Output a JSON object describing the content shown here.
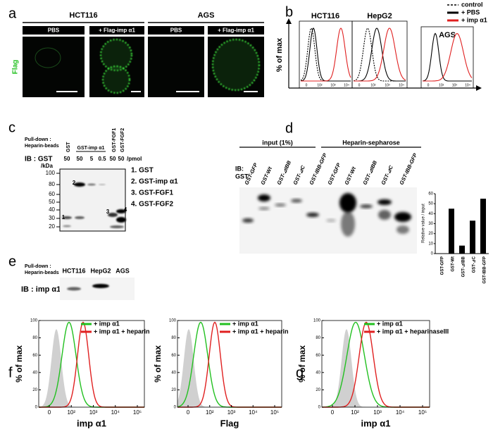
{
  "panels": {
    "a": {
      "label": "a",
      "channel": "Flag",
      "cell_lines": [
        {
          "name": "HCT116",
          "conditions": [
            "PBS",
            "+ Flag-imp α1"
          ]
        },
        {
          "name": "AGS",
          "conditions": [
            "PBS",
            "+ Flag-imp α1"
          ]
        }
      ]
    },
    "b": {
      "label": "b",
      "y_label": "% of max",
      "plots": [
        "HCT116",
        "HepG2",
        "AGS"
      ],
      "legend": [
        "control",
        "+ PBS",
        "+ imp α1"
      ],
      "legend_colors": [
        "#000000",
        "#000000",
        "#e02020"
      ],
      "x_tick_labels": [
        "0",
        "10²",
        "10³",
        "10⁴"
      ]
    },
    "c": {
      "label": "c",
      "pull_down": [
        "Pull-down :",
        "Heparin-beads"
      ],
      "ib": "IB : GST",
      "lanes": [
        "GST",
        "GST-imp α1",
        "GST-FGF1",
        "GST-FGF2"
      ],
      "amounts": [
        50,
        50,
        5,
        0.5,
        50,
        50
      ],
      "amount_unit": "/pmol",
      "kda_unit": "/kDa",
      "kda_markers": [
        100,
        80,
        60,
        50,
        40,
        30,
        20
      ],
      "band_labels": [
        "1",
        "2",
        "3",
        "4"
      ],
      "legend": [
        "1. GST",
        "2. GST-imp α1",
        "3. GST-FGF1",
        "4. GST-FGF2"
      ]
    },
    "d": {
      "label": "d",
      "groups": [
        "input (1%)",
        "Heparin-sepharose"
      ],
      "ib": [
        "IB:",
        "GST"
      ],
      "lanes": [
        "GST-GFP",
        "GST-Wt",
        "GST-⊿IBB",
        "GST-⊿C",
        "GST-IBB-GFP"
      ],
      "bar_chart": {
        "y_label": "Relative value / input",
        "categories": [
          "GST-GFP",
          "GST-Wt",
          "GST-⊿IBB",
          "GST-⊿C",
          "GST-IBB-GFP"
        ],
        "values": [
          0,
          45,
          8,
          33,
          55
        ],
        "color": "#000000",
        "ylim": [
          0,
          60
        ],
        "yticks": [
          0,
          10,
          20,
          30,
          40,
          50,
          60
        ]
      }
    },
    "e": {
      "label": "e",
      "pull_down": [
        "Pull-down :",
        "Heparin-beads"
      ],
      "lanes": [
        "HCT116",
        "HepG2",
        "AGS"
      ],
      "ib": "IB : imp α1"
    },
    "f": {
      "label": "f",
      "y_label": "% of max",
      "ylim": [
        0,
        100
      ],
      "yticks": [
        0,
        20,
        40,
        60,
        80,
        100
      ],
      "x_tick_labels": [
        "0",
        "10²",
        "10³",
        "10⁴",
        "10⁵"
      ],
      "legend_colors": [
        "#22c020",
        "#e02020"
      ],
      "plots": [
        {
          "x_label": "imp α1",
          "legend": [
            "+ imp α1",
            "+ imp α1 + heparin"
          ]
        },
        {
          "x_label": "Flag",
          "legend": [
            "+ imp α1",
            "+ imp α1 + heparin"
          ]
        }
      ]
    },
    "g": {
      "label": "g",
      "y_label": "% of max",
      "ylim": [
        0,
        100
      ],
      "yticks": [
        0,
        20,
        40,
        60,
        80,
        100
      ],
      "x_tick_labels": [
        "0",
        "10²",
        "10³",
        "10⁴",
        "10⁵"
      ],
      "legend_colors": [
        "#22c020",
        "#e02020"
      ],
      "plots": [
        {
          "x_label": "imp α1",
          "legend": [
            "+ imp α1",
            "+ imp α1 + heparinaseIII"
          ]
        }
      ]
    }
  }
}
